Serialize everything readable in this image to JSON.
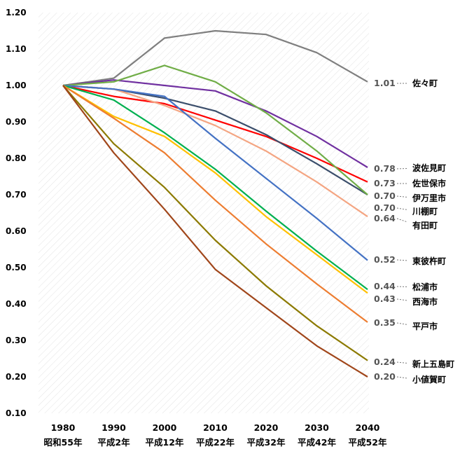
{
  "chart_data": {
    "type": "line",
    "title": "",
    "xlabel": "",
    "ylabel": "",
    "x": [
      "1980",
      "1990",
      "2000",
      "2010",
      "2020",
      "2030",
      "2040"
    ],
    "x_era": [
      "昭和55年",
      "平成2年",
      "平成12年",
      "平成22年",
      "平成32年",
      "平成42年",
      "平成52年"
    ],
    "ylim": [
      0.1,
      1.2
    ],
    "yticks": [
      "0.10",
      "0.20",
      "0.30",
      "0.40",
      "0.50",
      "0.60",
      "0.70",
      "0.80",
      "0.90",
      "1.00",
      "1.10",
      "1.20"
    ],
    "grid": "diagonal-hatch",
    "legend": "end-labels-right",
    "series": [
      {
        "name": "佐々町",
        "end_label": "1.01",
        "color": "#7f7f7f",
        "values": [
          1.0,
          1.02,
          1.13,
          1.15,
          1.14,
          1.09,
          1.01
        ]
      },
      {
        "name": "波佐見町",
        "end_label": "0.78",
        "color": "#7030a0",
        "values": [
          1.0,
          1.015,
          1.0,
          0.985,
          0.93,
          0.86,
          0.775
        ]
      },
      {
        "name": "佐世保市",
        "end_label": "0.73",
        "color": "#ff0000",
        "values": [
          1.0,
          0.97,
          0.95,
          0.905,
          0.86,
          0.8,
          0.735
        ]
      },
      {
        "name": "伊万里市",
        "end_label": "0.70",
        "color": "#3b4e6b",
        "values": [
          1.0,
          0.99,
          0.965,
          0.93,
          0.865,
          0.785,
          0.7
        ]
      },
      {
        "name": "川棚町",
        "end_label": "0.70",
        "color": "#70ad47",
        "values": [
          1.0,
          1.01,
          1.055,
          1.01,
          0.925,
          0.82,
          0.7
        ]
      },
      {
        "name": "有田町",
        "end_label": "0.64",
        "color": "#f4a582",
        "values": [
          1.0,
          0.99,
          0.945,
          0.89,
          0.82,
          0.735,
          0.64
        ]
      },
      {
        "name": "東彼杵町",
        "end_label": "0.52",
        "color": "#4472c4",
        "values": [
          1.0,
          0.99,
          0.97,
          0.855,
          0.745,
          0.635,
          0.52
        ]
      },
      {
        "name": "松浦市",
        "end_label": "0.44",
        "color": "#00b050",
        "values": [
          1.0,
          0.96,
          0.87,
          0.77,
          0.655,
          0.545,
          0.44
        ]
      },
      {
        "name": "西海市",
        "end_label": "0.43",
        "color": "#ffc000",
        "values": [
          1.0,
          0.915,
          0.86,
          0.76,
          0.64,
          0.535,
          0.43
        ]
      },
      {
        "name": "平戸市",
        "end_label": "0.35",
        "color": "#ed7d31",
        "values": [
          1.0,
          0.91,
          0.815,
          0.685,
          0.565,
          0.455,
          0.35
        ]
      },
      {
        "name": "新上五島町",
        "end_label": "0.24",
        "color": "#8c7a00",
        "values": [
          1.0,
          0.84,
          0.72,
          0.575,
          0.45,
          0.34,
          0.245
        ]
      },
      {
        "name": "小値賀町",
        "end_label": "0.20",
        "color": "#a0461a",
        "values": [
          1.0,
          0.815,
          0.66,
          0.495,
          0.39,
          0.285,
          0.2
        ]
      }
    ]
  }
}
